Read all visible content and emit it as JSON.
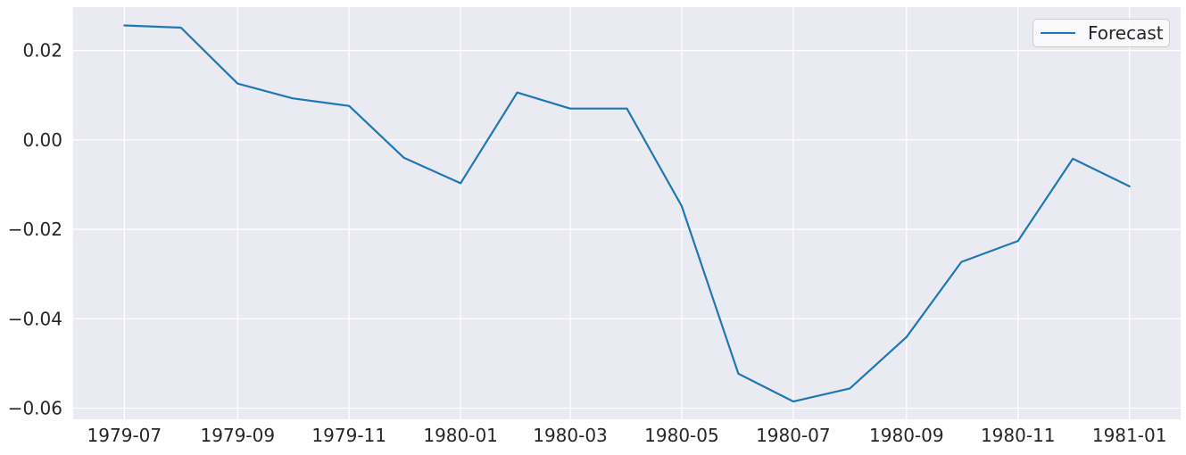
{
  "chart_data": {
    "type": "line",
    "title": "",
    "xlabel": "",
    "ylabel": "",
    "x": [
      "1979-07",
      "1979-08",
      "1979-09",
      "1979-10",
      "1979-11",
      "1979-12",
      "1980-01",
      "1980-02",
      "1980-03",
      "1980-04",
      "1980-05",
      "1980-06",
      "1980-07",
      "1980-08",
      "1980-09",
      "1980-10",
      "1980-11",
      "1980-12",
      "1981-01"
    ],
    "series": [
      {
        "name": "Forecast",
        "color": "#1f77b4",
        "values": [
          0.0256,
          0.0251,
          0.0126,
          0.0093,
          0.0076,
          -0.004,
          -0.0097,
          0.0106,
          0.007,
          0.007,
          -0.0148,
          -0.0523,
          -0.0585,
          -0.0556,
          -0.0441,
          -0.0273,
          -0.0226,
          -0.0042,
          -0.0104
        ]
      }
    ],
    "x_tick_labels": [
      "1979-07",
      "1979-09",
      "1979-11",
      "1980-01",
      "1980-03",
      "1980-05",
      "1980-07",
      "1980-09",
      "1980-11",
      "1981-01"
    ],
    "y_ticks": [
      0.02,
      0.0,
      -0.02,
      -0.04,
      -0.06
    ],
    "y_tick_labels": [
      "0.02",
      "0.00",
      "−0.02",
      "−0.04",
      "−0.06"
    ],
    "xlim": [
      "1979-06-03",
      "1981-01-29"
    ],
    "ylim": [
      -0.0625,
      0.0297
    ],
    "grid": true,
    "legend": {
      "label": "Forecast",
      "position": "upper-right"
    },
    "colors": {
      "figure_background": "#ffffff",
      "plot_background": "#eaeaf2",
      "gridline": "#ffffff",
      "line": "#1f77b4",
      "tick_label": "#262626",
      "legend_border": "#cccccc"
    }
  }
}
